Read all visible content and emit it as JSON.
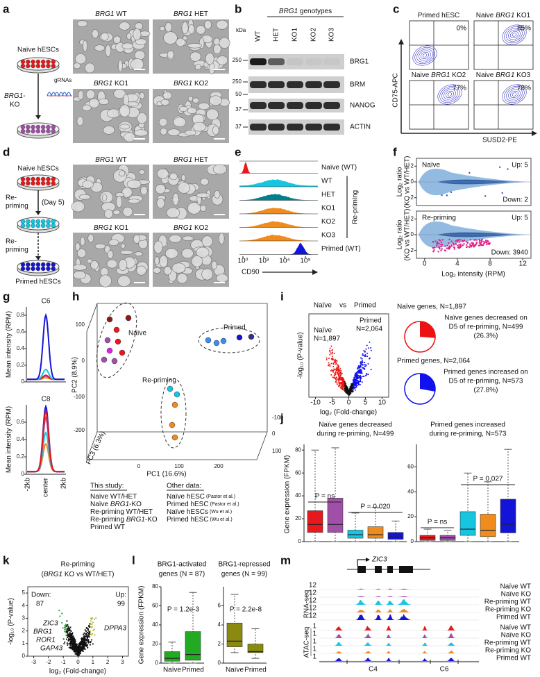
{
  "a": {
    "letter": "a",
    "cell": "Naïve hESCs",
    "ko": [
      {
        "text": "BRG1",
        "italic": true
      },
      {
        "text": "-"
      }
    ],
    "ko_line2": "KO",
    "grna": "gRNAs",
    "images": [
      [
        {
          "text": "BRG1",
          "italic": true
        },
        {
          "text": " WT"
        }
      ],
      [
        {
          "text": "BRG1",
          "italic": true
        },
        {
          "text": " HET"
        }
      ],
      [
        {
          "text": "BRG1",
          "italic": true
        },
        {
          "text": " KO1"
        }
      ],
      [
        {
          "text": "BRG1",
          "italic": true
        },
        {
          "text": " KO2"
        }
      ]
    ]
  },
  "b": {
    "letter": "b",
    "title": [
      {
        "text": "BRG1",
        "italic": true
      },
      {
        "text": " genotypes"
      }
    ],
    "unit": "kDa",
    "lanes": [
      "WT",
      "HET",
      "KO1",
      "KO2",
      "KO3"
    ],
    "markers": [
      "250",
      "250",
      "50",
      "37",
      "37"
    ],
    "proteins": [
      "BRG1",
      "BRM",
      "NANOG",
      "ACTIN"
    ]
  },
  "c": {
    "letter": "c",
    "plots": [
      {
        "label": [
          {
            "text": "Primed hESC"
          }
        ],
        "pct": "0%"
      },
      {
        "label": [
          {
            "text": "Naive "
          },
          {
            "text": "BRG1",
            "italic": true
          },
          {
            "text": " KO1"
          }
        ],
        "pct": "85%"
      },
      {
        "label": [
          {
            "text": "Naive "
          },
          {
            "text": "BRG1",
            "italic": true
          },
          {
            "text": " KO2"
          }
        ],
        "pct": "77%"
      },
      {
        "label": [
          {
            "text": "Naive "
          },
          {
            "text": "BRG1",
            "italic": true
          },
          {
            "text": " KO3"
          }
        ],
        "pct": "78%"
      }
    ],
    "ylabel": "CD75-APC",
    "xlabel": "SUSD2-PE"
  },
  "d": {
    "letter": "d",
    "steps": [
      "Naive hESCs",
      "Re-",
      "priming",
      "(Day 5)",
      "Re-",
      "priming",
      "Primed hESCs"
    ],
    "images": [
      [
        {
          "text": "BRG1",
          "italic": true
        },
        {
          "text": " WT"
        }
      ],
      [
        {
          "text": "BRG1",
          "italic": true
        },
        {
          "text": " HET"
        }
      ],
      [
        {
          "text": "BRG1",
          "italic": true
        },
        {
          "text": " KO1"
        }
      ],
      [
        {
          "text": "BRG1",
          "italic": true
        },
        {
          "text": " KO2"
        }
      ]
    ]
  },
  "e": {
    "letter": "e",
    "rows": [
      "Naïve (WT)",
      "WT",
      "HET",
      "KO1",
      "KO2",
      "KO3",
      "Primed (WT)"
    ],
    "group": "Re-priming",
    "xlabel": "CD90",
    "xticks": [
      "10⁰",
      "10³",
      "10⁴",
      "10⁵"
    ]
  },
  "f": {
    "letter": "f",
    "plots": [
      {
        "label": "Naïve",
        "up": "Up: 5",
        "down": "Down: 2"
      },
      {
        "label": "Re-priming",
        "up": "Up: 5",
        "down": "Down: 3940"
      }
    ],
    "ylabel": [
      "Log₂ ratio",
      "(KO vs WT/HET)"
    ],
    "xlabel": "Log₂ intensity (RPM)",
    "xlim": [
      -1,
      13
    ],
    "xticks": [
      0,
      4,
      8,
      12
    ],
    "ylim": [
      -3,
      3
    ],
    "yticks": [
      2,
      0,
      -2
    ]
  },
  "g": {
    "letter": "g",
    "ylabel": "Mean intensity (RPM)",
    "xticks": [
      "-2kb",
      "center",
      "2kb"
    ],
    "plots": [
      {
        "title": "C6",
        "ylim": [
          0,
          0.9
        ],
        "yticks": [
          0,
          0.2,
          0.4,
          0.6,
          0.8
        ],
        "series": [
          {
            "color": "#f08c1e",
            "peak": 0.05
          },
          {
            "color": "#a050a8",
            "peak": 0.07
          },
          {
            "color": "#e8191c",
            "peak": 0.08
          },
          {
            "color": "#16c6e0",
            "peak": 0.15
          },
          {
            "color": "#1414d8",
            "peak": 0.8
          }
        ]
      },
      {
        "title": "C8",
        "ylim": [
          0,
          0.8
        ],
        "yticks": [
          0,
          0.2,
          0.4,
          0.6
        ],
        "series": [
          {
            "color": "#f08c1e",
            "peak": 0.35
          },
          {
            "color": "#16c6e0",
            "peak": 0.48
          },
          {
            "color": "#a050a8",
            "peak": 0.65
          },
          {
            "color": "#1414d8",
            "peak": 0.78
          },
          {
            "color": "#e8191c",
            "peak": 0.72
          }
        ]
      }
    ]
  },
  "h": {
    "letter": "h",
    "ylabel": "PC2 (8.9%)",
    "xlabel": "PC1 (16.6%)",
    "zlabel": "PC3 (6.3%)",
    "yticks": [
      "100",
      "0",
      "-100",
      "-200"
    ],
    "xticks": [
      "0",
      "100",
      "200"
    ],
    "zticks": [
      "-100",
      "0",
      "100"
    ],
    "groups": [
      "Naïve",
      "Primed",
      "Re-priming"
    ],
    "this_study": "This study:",
    "other_data": "Other data:",
    "legend_this": [
      {
        "label": [
          {
            "text": "Naïve WT/HET"
          }
        ],
        "color": "#e8191c"
      },
      {
        "label": [
          {
            "text": "Naïve "
          },
          {
            "text": "BRG1",
            "italic": true
          },
          {
            "text": "-KO"
          }
        ],
        "color": "#a050a8"
      },
      {
        "label": [
          {
            "text": "Re-priming WT/HET"
          }
        ],
        "color": "#16c6e0"
      },
      {
        "label": [
          {
            "text": "Re-priming "
          },
          {
            "text": "BRG1",
            "italic": true
          },
          {
            "text": "-KO"
          }
        ],
        "color": "#f08c1e"
      },
      {
        "label": [
          {
            "text": "Primed WT"
          }
        ],
        "color": "#1414d8"
      }
    ],
    "legend_other": [
      {
        "label": [
          {
            "text": "Naïve hESC"
          },
          {
            "text": " (Pastor et al.)",
            "small": true,
            "color": "#111"
          }
        ],
        "color": "#e020e0"
      },
      {
        "label": [
          {
            "text": "Primed hESC"
          },
          {
            "text": " (Pastor et al.)",
            "small": true,
            "color": "#111"
          }
        ],
        "color": "#303090"
      },
      {
        "label": [
          {
            "text": "Naïve hESCs"
          },
          {
            "text": " (Wu et al.)",
            "small": true,
            "color": "#111"
          }
        ],
        "color": "#8b1a1a"
      },
      {
        "label": [
          {
            "text": "Primed hESC"
          },
          {
            "text": " (Wu et al.)",
            "small": true,
            "color": "#111"
          }
        ],
        "color": "#3a8ef0"
      }
    ]
  },
  "i": {
    "letter": "i",
    "title": [
      "Naïve",
      "vs",
      "Primed"
    ],
    "naive_n": [
      "Naïve",
      "N=1,897"
    ],
    "primed_n": [
      "Primed",
      "N=2,064"
    ],
    "ylabel": "-log₁₀ (P-value)",
    "xlabel": "log₂ (Fold-change)",
    "xlim": [
      -12,
      12
    ],
    "xticks": [
      -10,
      -5,
      0,
      5,
      10
    ],
    "pies": [
      {
        "title": "Naïve genes, N=1,897",
        "text": [
          "Naïve genes decreased on",
          "D5 of re-priming, N=499"
        ],
        "pct": {
          "value": 26.3,
          "label": "(26.3%)"
        },
        "color": "#ee1111"
      },
      {
        "title": "Primed genes, N=2,064",
        "text": [
          "Primed genes increased on",
          "D5 of re-priming, N=573"
        ],
        "pct": {
          "value": 27.8,
          "label": "(27.8%)"
        },
        "color": "#1111ee"
      }
    ]
  },
  "j": {
    "letter": "j",
    "ylabel": "Gene expression (FPKM)",
    "plots": [
      {
        "title": [
          "Naïve genes decreased",
          "during re-priming, N=499"
        ],
        "ylim": [
          0,
          85
        ],
        "yticks": [
          0,
          20,
          40,
          60,
          80
        ],
        "p": [
          "P = ns",
          "P = 0.020"
        ],
        "boxes": [
          {
            "color": "#e8191c",
            "stats": [
              0,
              8,
              15,
              27,
              80
            ]
          },
          {
            "color": "#a050a8",
            "stats": [
              0,
              8,
              15,
              38,
              82
            ]
          },
          {
            "color": "#16c6e0",
            "stats": [
              0,
              3,
              6,
              10,
              25
            ]
          },
          {
            "color": "#f08c1e",
            "stats": [
              0,
              3,
              6,
              13,
              30
            ]
          },
          {
            "color": "#1414d8",
            "stats": [
              0,
              2,
              4,
              8,
              18
            ]
          }
        ]
      },
      {
        "title": [
          "Primed genes increased",
          "during re-priming, N=573"
        ],
        "ylim": [
          0,
          78
        ],
        "yticks": [
          0,
          20,
          40,
          60
        ],
        "p": [
          "P = ns",
          "P = 0.027"
        ],
        "boxes": [
          {
            "color": "#e8191c",
            "stats": [
              0,
              1,
              3,
              5,
              10
            ]
          },
          {
            "color": "#a050a8",
            "stats": [
              0,
              1,
              3,
              5,
              9
            ]
          },
          {
            "color": "#16c6e0",
            "stats": [
              0,
              5,
              10,
              24,
              55
            ]
          },
          {
            "color": "#f08c1e",
            "stats": [
              0,
              4,
              9,
              22,
              48
            ]
          },
          {
            "color": "#1414d8",
            "stats": [
              0,
              7,
              14,
              34,
              74
            ]
          }
        ]
      }
    ]
  },
  "k": {
    "letter": "k",
    "title": [
      "Re-priming",
      [
        {
          "text": "("
        },
        {
          "text": "BRG1",
          "italic": true
        },
        {
          "text": " KO vs WT/HET)"
        }
      ]
    ],
    "down": [
      "Down:",
      "87"
    ],
    "up": [
      "Up:",
      "99"
    ],
    "genes_left": [
      "ZIC3",
      "BRG1",
      "ROR1",
      "GAP43"
    ],
    "genes_right": [
      "DPPA3"
    ],
    "ylabel": "-log₁₀ (P-value)",
    "xlabel": "log₂ (Fold-change)",
    "xlim": [
      -3.4,
      3.4
    ],
    "xticks": [
      -3,
      -2,
      -1,
      0,
      1,
      2,
      3
    ],
    "ylim": [
      0,
      5.5
    ],
    "yticks": [
      0,
      1,
      2,
      3,
      4,
      5
    ]
  },
  "l": {
    "letter": "l",
    "ylabel": "Gene expression (FPKM)",
    "plots": [
      {
        "title": [
          "BRG1-activated",
          "genes (N = 87)"
        ],
        "p": "P = 1.2e-3",
        "ylim": [
          0,
          80
        ],
        "yticks": [
          0,
          20,
          40,
          60,
          80
        ],
        "categories": [
          "Naïve",
          "Primed"
        ],
        "color": "#22aa22",
        "boxes": [
          [
            0,
            2,
            5,
            12,
            22
          ],
          [
            0,
            3,
            9,
            33,
            74
          ]
        ]
      },
      {
        "title": [
          "BRG1-repressed",
          "genes (N = 99)"
        ],
        "p": "P = 2.2e-8",
        "ylim": [
          0,
          8
        ],
        "yticks": [
          0,
          2,
          4,
          6
        ],
        "categories": [
          "Naïve",
          "Primed"
        ],
        "color": "#8a8a10",
        "boxes": [
          [
            1.1,
            1.7,
            2.3,
            4.2,
            7.2
          ],
          [
            0.5,
            1.1,
            1.2,
            2.0,
            3.6
          ]
        ]
      }
    ]
  },
  "m": {
    "letter": "m",
    "gene": "ZIC3",
    "assays": [
      "RNA-seq",
      "ATAC-seq"
    ],
    "regions": [
      "C4",
      "C6"
    ],
    "tracks": [
      {
        "name": "Naïve WT",
        "color": "#e8191c",
        "scale": "12"
      },
      {
        "name": "Naïve KO",
        "color": "#a050a8",
        "scale": "12"
      },
      {
        "name": "Re-priming WT",
        "color": "#16c6e0",
        "scale": "12"
      },
      {
        "name": "Re-priming KO",
        "color": "#f08c1e",
        "scale": "12"
      },
      {
        "name": "Primed WT",
        "color": "#1414d8",
        "scale": "12"
      },
      {
        "name": "Naïve WT",
        "color": "#e8191c",
        "scale": "1"
      },
      {
        "name": "Naïve KO",
        "color": "#a050a8",
        "scale": "1"
      },
      {
        "name": "Re-priming WT",
        "color": "#16c6e0",
        "scale": "1"
      },
      {
        "name": "Re-priming KO",
        "color": "#f08c1e",
        "scale": "1"
      },
      {
        "name": "Primed WT",
        "color": "#1414d8",
        "scale": "1"
      }
    ]
  }
}
